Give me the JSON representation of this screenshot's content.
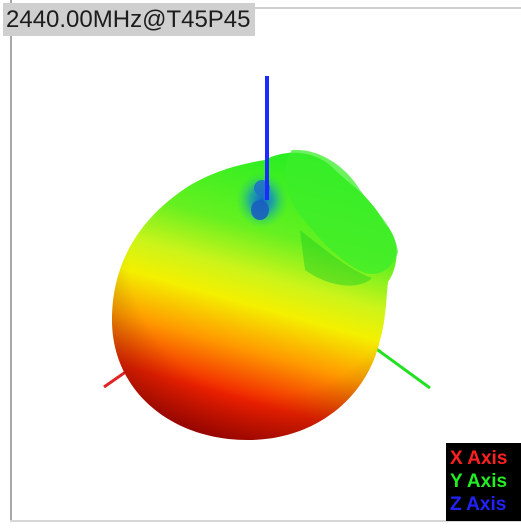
{
  "title": "2440.00MHz@T45P45",
  "axes_legend": [
    {
      "label": "X Axis",
      "color": "#ff2020"
    },
    {
      "label": "Y Axis",
      "color": "#22ee22"
    },
    {
      "label": "Z Axis",
      "color": "#2222ff"
    }
  ],
  "colors": {
    "x_axis": "#e02424",
    "y_axis": "#22e022",
    "z_axis": "#1a2cff",
    "gain_high": "#e00000",
    "gain_mid": "#f2f200",
    "gain_low": "#22ee22",
    "gain_min": "#2288cc"
  }
}
